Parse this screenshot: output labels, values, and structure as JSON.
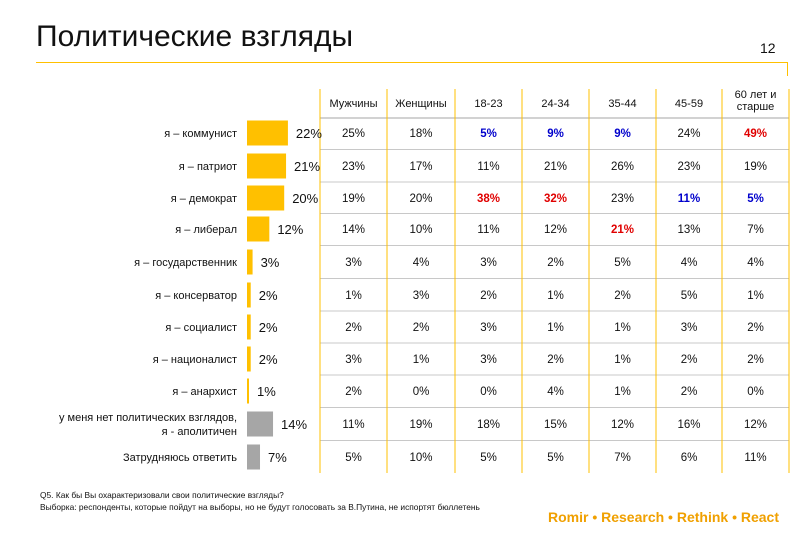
{
  "title": "Политические взгляды",
  "page_number": "12",
  "colors": {
    "main_bar": "#ffc000",
    "grey_bar": "#a6a6a6",
    "accent_line": "#ffc000",
    "high": "#e00000",
    "low": "#0000cc"
  },
  "footnote": {
    "question": "Q5. Как бы Вы охарактеризовали свои политические взгляды?",
    "sample": "Выборка: респонденты, которые пойдут на выборы, но не будут голосовать за В.Путина, не испортят бюллетень"
  },
  "brand": "Romir • Research • Rethink • React",
  "chart_data": {
    "type": "bar",
    "orientation": "horizontal",
    "categories": [
      "я – коммунист",
      "я – патриот",
      "я – демократ",
      "я – либерал",
      "я – государственник",
      "я – консерватор",
      "я – социалист",
      "я – националист",
      "я – анархист",
      "у меня нет политических взглядов, я - аполитичен",
      "Затрудняюсь ответить"
    ],
    "values": [
      22,
      21,
      20,
      12,
      3,
      2,
      2,
      2,
      1,
      14,
      7
    ],
    "value_labels": [
      "22%",
      "21%",
      "20%",
      "12%",
      "3%",
      "2%",
      "2%",
      "2%",
      "1%",
      "14%",
      "7%"
    ],
    "bar_colors": [
      "#ffc000",
      "#ffc000",
      "#ffc000",
      "#ffc000",
      "#ffc000",
      "#ffc000",
      "#ffc000",
      "#ffc000",
      "#ffc000",
      "#a6a6a6",
      "#a6a6a6"
    ],
    "label_lines": [
      [
        "я – коммунист"
      ],
      [
        "я – патриот"
      ],
      [
        "я – демократ"
      ],
      [
        "я – либерал"
      ],
      [
        "я – государственник"
      ],
      [
        "я – консерватор"
      ],
      [
        "я – социалист"
      ],
      [
        "я – националист"
      ],
      [
        "я – анархист"
      ],
      [
        "у меня нет политических взглядов,",
        "я - аполитичен"
      ],
      [
        "Затрудняюсь ответить"
      ]
    ]
  },
  "table": {
    "columns": [
      {
        "header": [
          "Мужчины"
        ],
        "values": [
          "25%",
          "23%",
          "19%",
          "14%",
          "3%",
          "1%",
          "2%",
          "3%",
          "2%",
          "11%",
          "5%"
        ],
        "highlights": [
          "",
          "",
          "",
          "",
          "",
          "",
          "",
          "",
          "",
          "",
          ""
        ]
      },
      {
        "header": [
          "Женщины"
        ],
        "values": [
          "18%",
          "17%",
          "20%",
          "10%",
          "4%",
          "3%",
          "2%",
          "1%",
          "0%",
          "19%",
          "10%"
        ],
        "highlights": [
          "",
          "",
          "",
          "",
          "",
          "",
          "",
          "",
          "",
          "",
          ""
        ]
      },
      {
        "header": [
          "18-23"
        ],
        "values": [
          "5%",
          "11%",
          "38%",
          "11%",
          "3%",
          "2%",
          "3%",
          "3%",
          "0%",
          "18%",
          "5%"
        ],
        "highlights": [
          "low",
          "",
          "high",
          "",
          "",
          "",
          "",
          "",
          "",
          "",
          ""
        ]
      },
      {
        "header": [
          "24-34"
        ],
        "values": [
          "9%",
          "21%",
          "32%",
          "12%",
          "2%",
          "1%",
          "1%",
          "2%",
          "4%",
          "15%",
          "5%"
        ],
        "highlights": [
          "low",
          "",
          "high",
          "",
          "",
          "",
          "",
          "",
          "",
          "",
          ""
        ]
      },
      {
        "header": [
          "35-44"
        ],
        "values": [
          "9%",
          "26%",
          "23%",
          "21%",
          "5%",
          "2%",
          "1%",
          "1%",
          "1%",
          "12%",
          "7%"
        ],
        "highlights": [
          "low",
          "",
          "",
          "high",
          "",
          "",
          "",
          "",
          "",
          "",
          ""
        ]
      },
      {
        "header": [
          "45-59"
        ],
        "values": [
          "24%",
          "23%",
          "11%",
          "13%",
          "4%",
          "5%",
          "3%",
          "2%",
          "2%",
          "16%",
          "6%"
        ],
        "highlights": [
          "",
          "",
          "low",
          "",
          "",
          "",
          "",
          "",
          "",
          "",
          ""
        ]
      },
      {
        "header": [
          "60 лет и",
          "старше"
        ],
        "values": [
          "49%",
          "19%",
          "5%",
          "7%",
          "4%",
          "1%",
          "2%",
          "2%",
          "0%",
          "12%",
          "11%"
        ],
        "highlights": [
          "high",
          "",
          "low",
          "",
          "",
          "",
          "",
          "",
          "",
          "",
          ""
        ]
      }
    ]
  }
}
